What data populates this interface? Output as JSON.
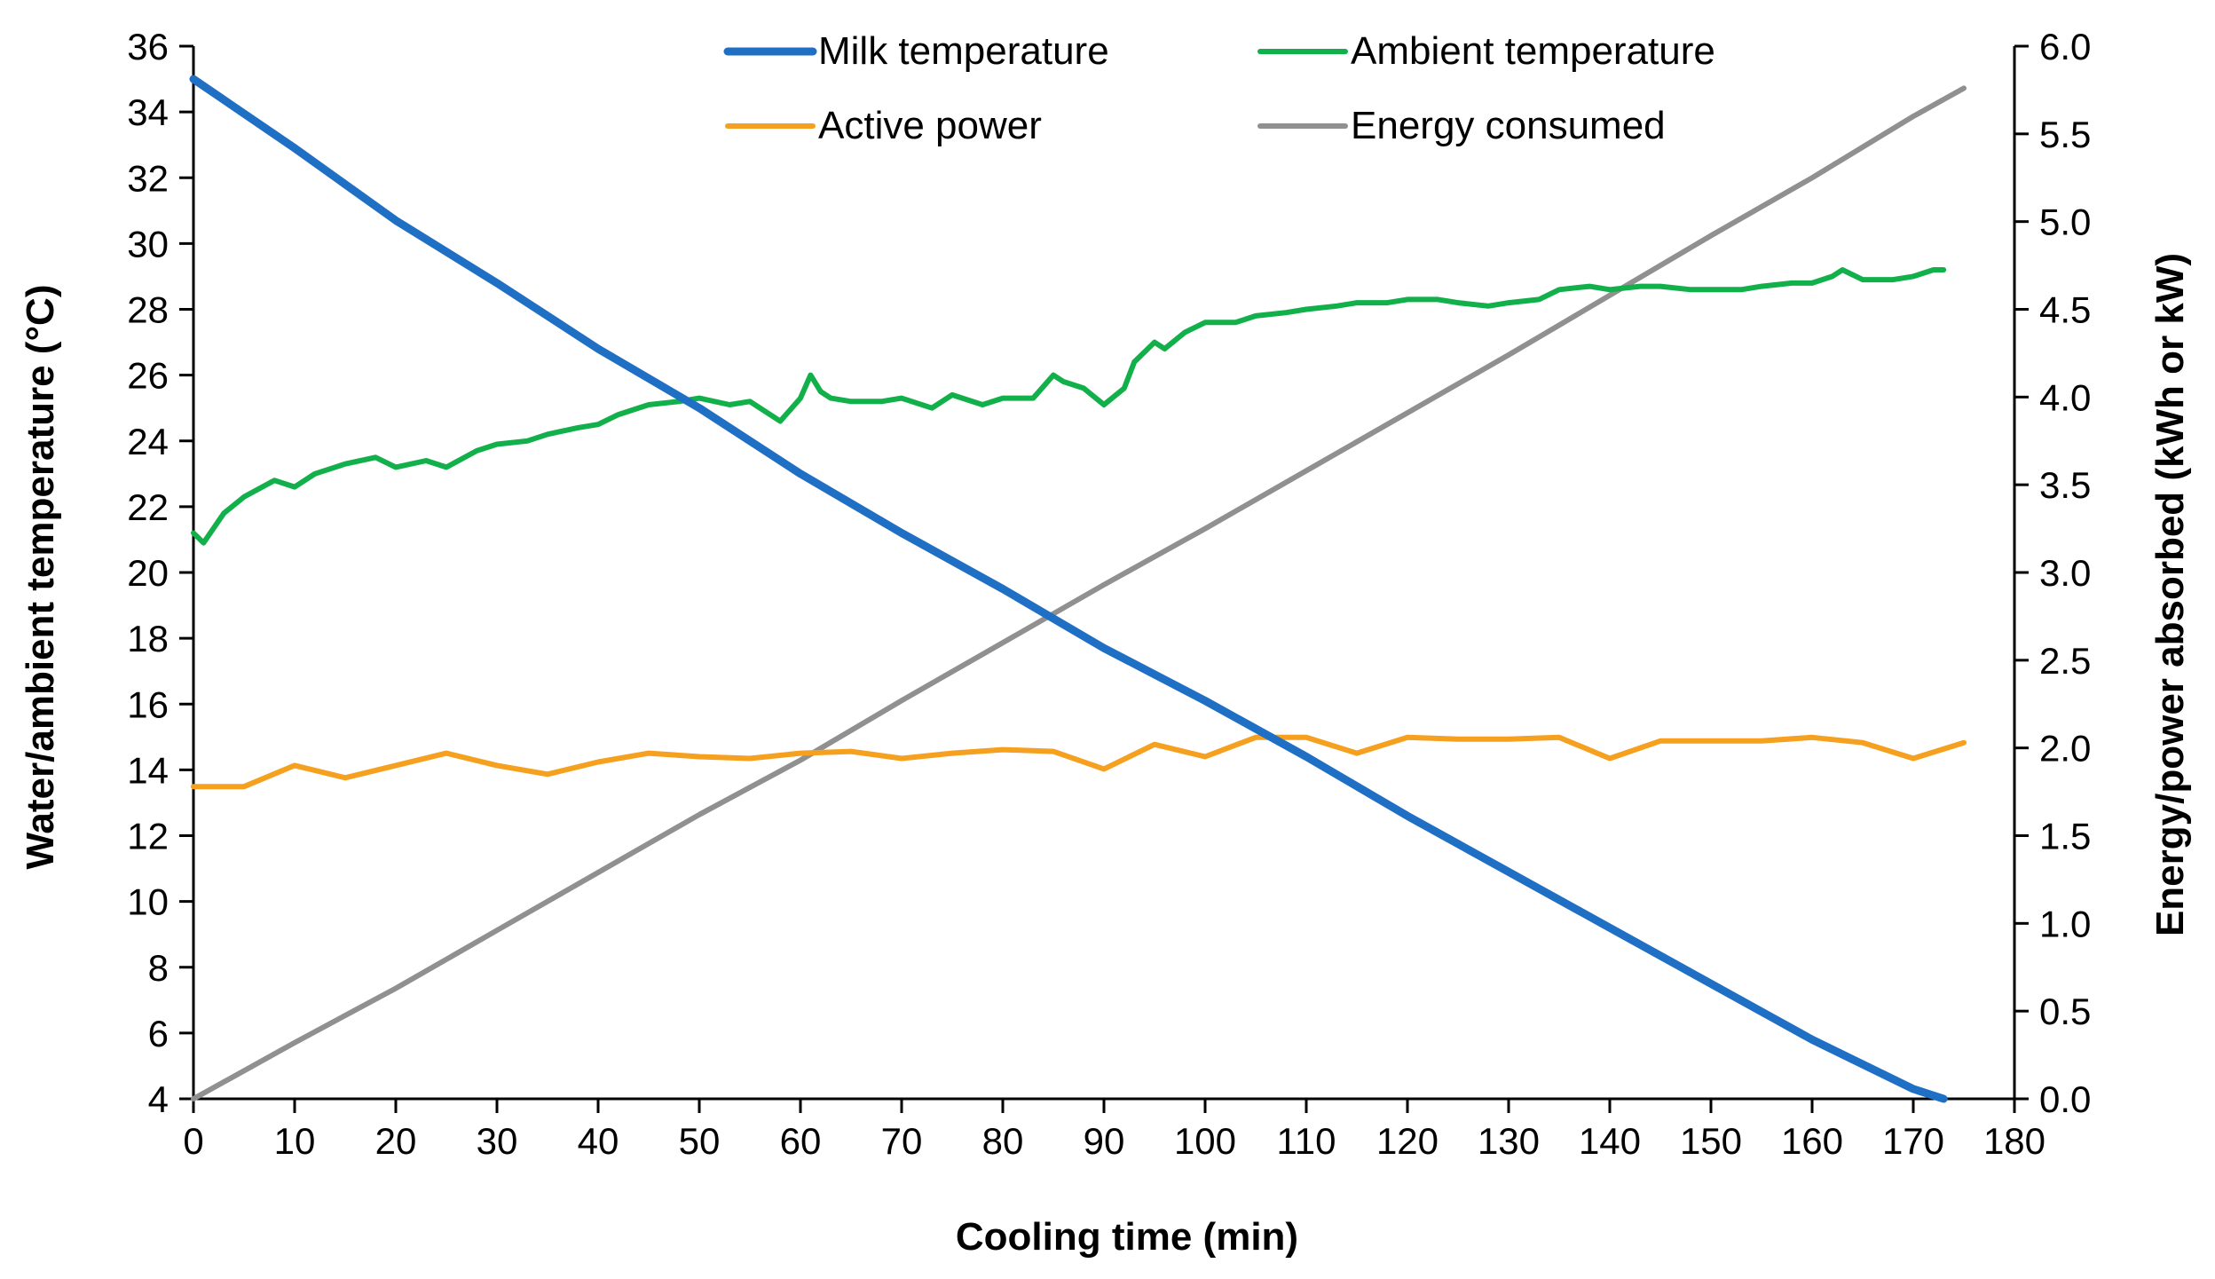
{
  "chart_data": {
    "type": "line",
    "title": "",
    "xlabel": "Cooling time (min)",
    "ylabel_left": "Water/ambient temperature (°C)",
    "ylabel_right": "Energy/power absorbed (kWh or kW)",
    "xlim": [
      0,
      180
    ],
    "ylim_left": [
      4,
      36
    ],
    "ylim_right": [
      0.0,
      6.0
    ],
    "x_ticks": [
      "0",
      "10",
      "20",
      "30",
      "40",
      "50",
      "60",
      "70",
      "80",
      "90",
      "100",
      "110",
      "120",
      "130",
      "140",
      "150",
      "160",
      "170",
      "180"
    ],
    "y_left_ticks": [
      "4",
      "6",
      "8",
      "10",
      "12",
      "14",
      "16",
      "18",
      "20",
      "22",
      "24",
      "26",
      "28",
      "30",
      "32",
      "34",
      "36"
    ],
    "y_right_ticks": [
      "0.0",
      "0.5",
      "1.0",
      "1.5",
      "2.0",
      "2.5",
      "3.0",
      "3.5",
      "4.0",
      "4.5",
      "5.0",
      "5.5",
      "6.0"
    ],
    "grid": false,
    "legend_position": "top",
    "series": [
      {
        "name": "Milk temperature",
        "axis": "left",
        "color": "#1f6fc5",
        "x": [
          0,
          10,
          20,
          30,
          40,
          50,
          60,
          70,
          80,
          90,
          100,
          110,
          120,
          130,
          140,
          150,
          160,
          170,
          173
        ],
        "y": [
          35.0,
          32.9,
          30.7,
          28.8,
          26.8,
          25.0,
          23.0,
          21.2,
          19.5,
          17.7,
          16.1,
          14.4,
          12.6,
          10.9,
          9.2,
          7.5,
          5.8,
          4.3,
          4.0
        ]
      },
      {
        "name": "Ambient temperature",
        "axis": "left",
        "color": "#12b04a",
        "x": [
          0,
          1,
          3,
          5,
          8,
          10,
          12,
          15,
          18,
          20,
          23,
          25,
          28,
          30,
          33,
          35,
          38,
          40,
          42,
          45,
          48,
          50,
          53,
          55,
          58,
          60,
          61,
          62,
          63,
          65,
          68,
          70,
          73,
          75,
          78,
          80,
          83,
          85,
          86,
          88,
          90,
          92,
          93,
          95,
          96,
          98,
          100,
          103,
          105,
          108,
          110,
          113,
          115,
          118,
          120,
          123,
          125,
          128,
          130,
          133,
          135,
          138,
          140,
          143,
          145,
          148,
          150,
          153,
          155,
          158,
          160,
          162,
          163,
          165,
          168,
          170,
          172,
          173
        ],
        "y": [
          21.2,
          20.9,
          21.8,
          22.3,
          22.8,
          22.6,
          23.0,
          23.3,
          23.5,
          23.2,
          23.4,
          23.2,
          23.7,
          23.9,
          24.0,
          24.2,
          24.4,
          24.5,
          24.8,
          25.1,
          25.2,
          25.3,
          25.1,
          25.2,
          24.6,
          25.3,
          26.0,
          25.5,
          25.3,
          25.2,
          25.2,
          25.3,
          25.0,
          25.4,
          25.1,
          25.3,
          25.3,
          26.0,
          25.8,
          25.6,
          25.1,
          25.6,
          26.4,
          27.0,
          26.8,
          27.3,
          27.6,
          27.6,
          27.8,
          27.9,
          28.0,
          28.1,
          28.2,
          28.2,
          28.3,
          28.3,
          28.2,
          28.1,
          28.2,
          28.3,
          28.6,
          28.7,
          28.6,
          28.7,
          28.7,
          28.6,
          28.6,
          28.6,
          28.7,
          28.8,
          28.8,
          29.0,
          29.2,
          28.9,
          28.9,
          29.0,
          29.2,
          29.2
        ]
      },
      {
        "name": "Active power",
        "axis": "right",
        "color": "#f5a01e",
        "x": [
          0,
          5,
          10,
          15,
          20,
          25,
          30,
          35,
          40,
          45,
          50,
          55,
          60,
          65,
          70,
          75,
          80,
          85,
          90,
          95,
          100,
          105,
          110,
          115,
          120,
          125,
          130,
          135,
          140,
          145,
          150,
          155,
          160,
          165,
          170,
          175
        ],
        "y": [
          1.78,
          1.78,
          1.9,
          1.83,
          1.9,
          1.97,
          1.9,
          1.85,
          1.92,
          1.97,
          1.95,
          1.94,
          1.97,
          1.98,
          1.94,
          1.97,
          1.99,
          1.98,
          1.88,
          2.02,
          1.95,
          2.06,
          2.06,
          1.97,
          2.06,
          2.05,
          2.05,
          2.06,
          1.94,
          2.04,
          2.04,
          2.04,
          2.06,
          2.03,
          1.94,
          2.03
        ]
      },
      {
        "name": "Energy consumed",
        "axis": "right",
        "color": "#909090",
        "x": [
          0,
          10,
          20,
          30,
          40,
          50,
          60,
          70,
          80,
          90,
          100,
          110,
          120,
          130,
          140,
          150,
          160,
          170,
          175
        ],
        "y": [
          0.0,
          0.32,
          0.63,
          0.96,
          1.29,
          1.62,
          1.93,
          2.27,
          2.6,
          2.93,
          3.25,
          3.58,
          3.91,
          4.24,
          4.58,
          4.92,
          5.25,
          5.6,
          5.76
        ]
      }
    ]
  }
}
